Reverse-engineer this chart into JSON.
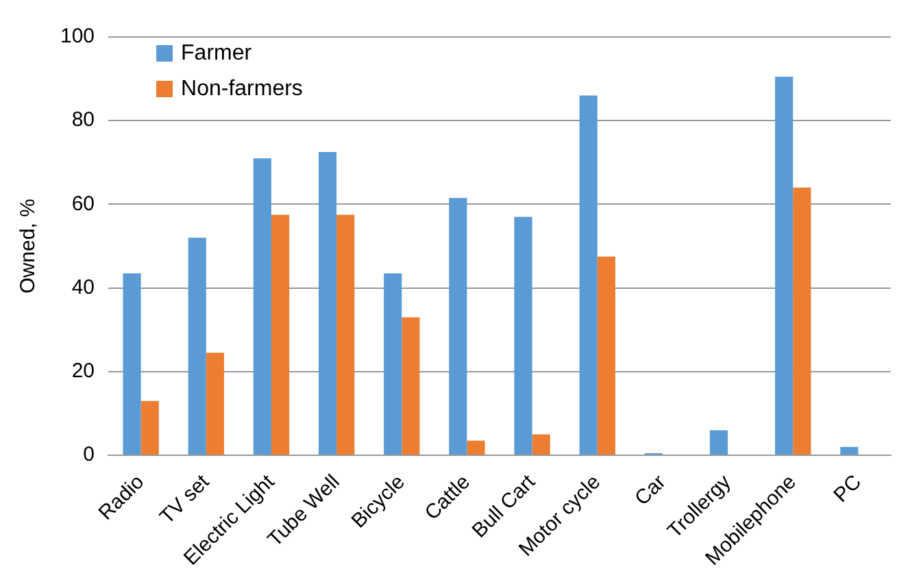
{
  "chart_data": {
    "type": "bar",
    "ylabel": "Owned, %",
    "categories": [
      "Radio",
      "TV set",
      "Electric Light",
      "Tube Well",
      "Bicycle",
      "Cattle",
      "Bull Cart",
      "Motor cycle",
      "Car",
      "Trollergy",
      "Mobilephone",
      "PC"
    ],
    "series": [
      {
        "name": "Farmer",
        "color": "#5b9bd5",
        "values": [
          43.5,
          52,
          71,
          72.5,
          43.5,
          61.5,
          57,
          86,
          0.5,
          6,
          90.5,
          2
        ]
      },
      {
        "name": "Non-farmers",
        "color": "#ed7d31",
        "values": [
          13,
          24.5,
          57.5,
          57.5,
          33,
          3.5,
          5,
          47.5,
          0,
          0,
          64,
          0
        ]
      }
    ],
    "ylim": [
      0,
      100
    ],
    "yticks": [
      0,
      20,
      40,
      60,
      80,
      100
    ],
    "grid": "y",
    "legend": "top left"
  }
}
